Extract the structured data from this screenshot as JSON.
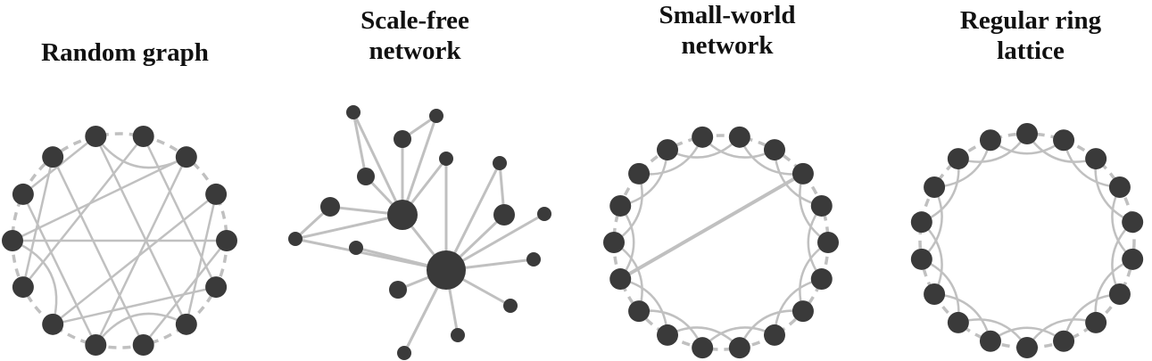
{
  "panels": [
    {
      "id": "random",
      "title_lines": [
        "Random graph"
      ]
    },
    {
      "id": "scale-free",
      "title_lines": [
        "Scale-free",
        "network"
      ]
    },
    {
      "id": "small-world",
      "title_lines": [
        "Small-world",
        "network"
      ]
    },
    {
      "id": "ring",
      "title_lines": [
        "Regular ring",
        "lattice"
      ]
    }
  ],
  "colors": {
    "node": "#3a3a3a",
    "edge": "#c0c0c0",
    "ring_edge": "#c0c0c0"
  },
  "graphs": {
    "random": {
      "nodes": 14,
      "ring_neighbors": 1,
      "chords": [
        [
          0,
          12
        ],
        [
          1,
          10
        ],
        [
          2,
          8
        ],
        [
          3,
          6
        ],
        [
          4,
          11
        ],
        [
          5,
          9
        ],
        [
          7,
          13
        ],
        [
          0,
          6
        ],
        [
          1,
          5
        ],
        [
          3,
          9
        ],
        [
          8,
          12
        ],
        [
          2,
          11
        ],
        [
          10,
          13
        ],
        [
          4,
          7
        ]
      ]
    },
    "small_world": {
      "nodes": 18,
      "ring_neighbors": 2,
      "rewired": [
        [
          3,
          13
        ]
      ]
    },
    "ring": {
      "nodes": 18,
      "ring_neighbors": 2
    },
    "scale_free": {
      "hubs": [
        "h1",
        "h2"
      ],
      "node_ids": [
        "h1",
        "h2",
        "a",
        "b",
        "c",
        "d",
        "e",
        "f",
        "g",
        "i",
        "j",
        "k",
        "l",
        "m",
        "n",
        "o",
        "p"
      ],
      "edges": [
        [
          "h1",
          "h2"
        ],
        [
          "a",
          "h1"
        ],
        [
          "b",
          "h1"
        ],
        [
          "c",
          "h1"
        ],
        [
          "d",
          "h1"
        ],
        [
          "e",
          "h1"
        ],
        [
          "f",
          "h1"
        ],
        [
          "g",
          "h1"
        ],
        [
          "i",
          "h2"
        ],
        [
          "j",
          "h2"
        ],
        [
          "k",
          "h2"
        ],
        [
          "l",
          "h2"
        ],
        [
          "m",
          "h2"
        ],
        [
          "n",
          "h2"
        ],
        [
          "o",
          "h2"
        ],
        [
          "p",
          "h2"
        ],
        [
          "a",
          "c"
        ],
        [
          "b",
          "d"
        ],
        [
          "e",
          "g"
        ],
        [
          "i",
          "j"
        ],
        [
          "f",
          "h2"
        ],
        [
          "g",
          "h2"
        ]
      ]
    }
  }
}
